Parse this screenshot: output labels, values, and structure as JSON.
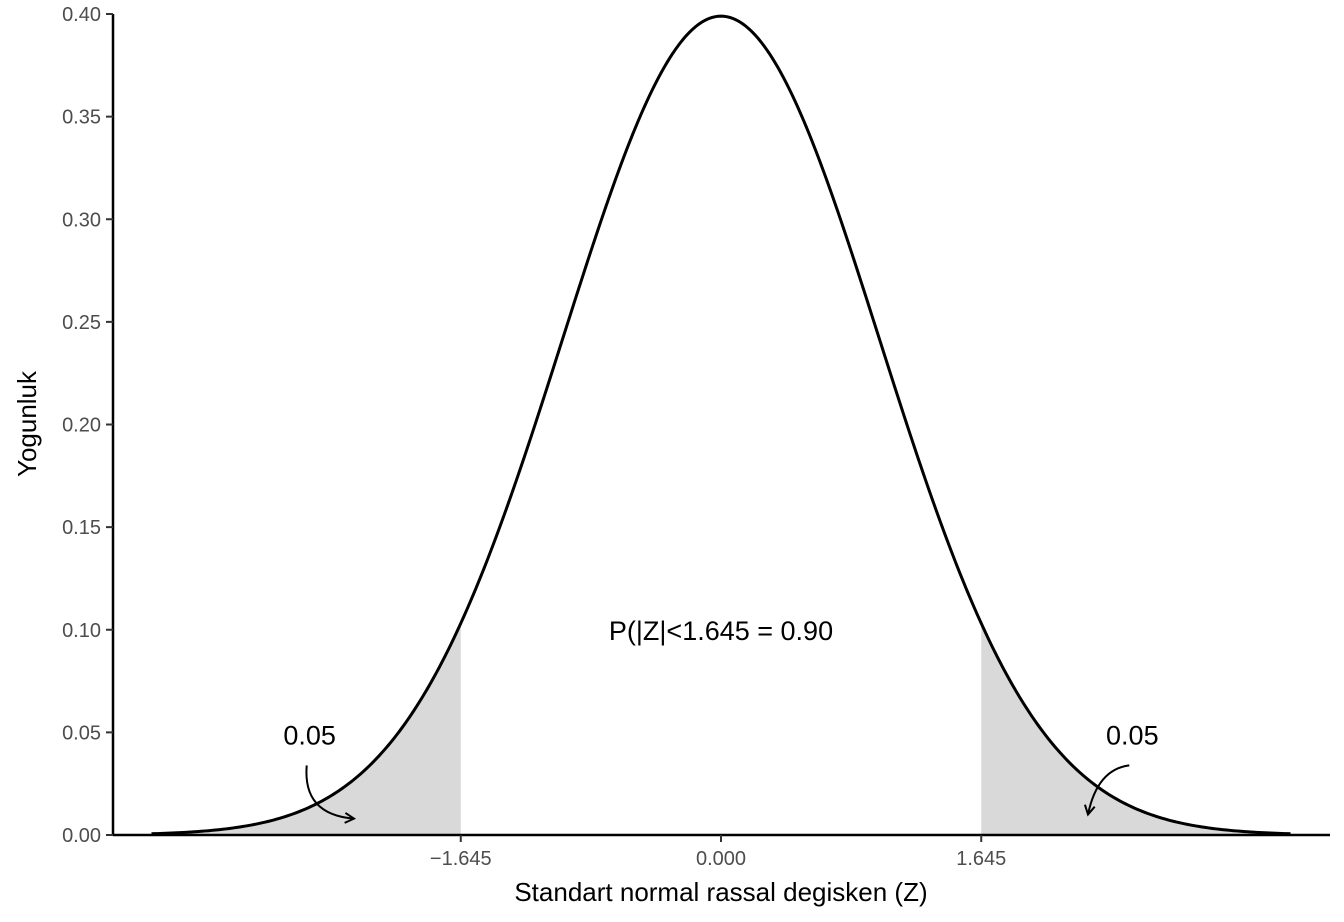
{
  "chart_data": {
    "type": "area",
    "title": "",
    "xlabel": "Standart normal rassal degisken (Z)",
    "ylabel": "Yogunluk",
    "xlim": [
      -3.8,
      4.0
    ],
    "ylim": [
      0,
      0.4
    ],
    "curve_domain": [
      -3.6,
      3.6
    ],
    "x_ticks": [
      {
        "value": -1.645,
        "label": "−1.645"
      },
      {
        "value": 0,
        "label": "0.000"
      },
      {
        "value": 1.645,
        "label": "1.645"
      }
    ],
    "y_ticks": [
      {
        "value": 0.0,
        "label": "0.00"
      },
      {
        "value": 0.05,
        "label": "0.05"
      },
      {
        "value": 0.1,
        "label": "0.10"
      },
      {
        "value": 0.15,
        "label": "0.15"
      },
      {
        "value": 0.2,
        "label": "0.20"
      },
      {
        "value": 0.25,
        "label": "0.25"
      },
      {
        "value": 0.3,
        "label": "0.30"
      },
      {
        "value": 0.35,
        "label": "0.35"
      },
      {
        "value": 0.4,
        "label": "0.40"
      }
    ],
    "series": [
      {
        "distribution": "standard-normal",
        "mean": 0,
        "sd": 1,
        "color": "#000000"
      }
    ],
    "shaded_regions": [
      {
        "from": -3.6,
        "to": -1.645,
        "color": "#d9d9d9"
      },
      {
        "from": 1.645,
        "to": 3.6,
        "color": "#d9d9d9"
      }
    ],
    "annotations": [
      {
        "text": "P(|Z|<1.645 = 0.90",
        "x": 0,
        "y": 0.1
      },
      {
        "text": "0.05",
        "x": -2.6,
        "y": 0.049,
        "arrow_to": [
          -2.32,
          0.008
        ]
      },
      {
        "text": "0.05",
        "x": 2.6,
        "y": 0.049,
        "arrow_to": [
          2.32,
          0.01
        ]
      }
    ],
    "grid": false,
    "legend": "none"
  }
}
